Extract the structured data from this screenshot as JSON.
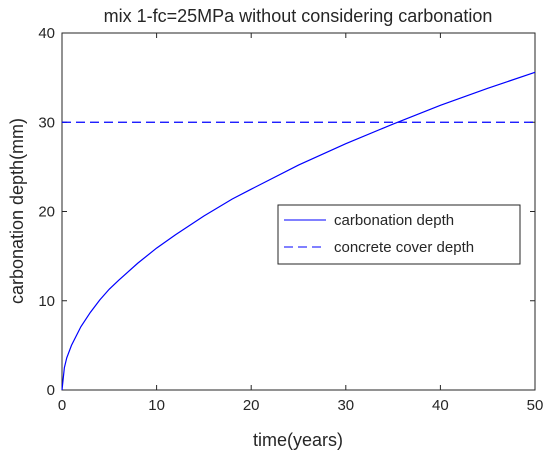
{
  "chart_data": {
    "type": "line",
    "title": "mix 1-fc=25MPa without considering carbonation",
    "xlabel": "time(years)",
    "ylabel": "carbonation depth(mm)",
    "xlim": [
      0,
      50
    ],
    "ylim": [
      0,
      40
    ],
    "xticks": [
      0,
      10,
      20,
      30,
      40,
      50
    ],
    "yticks": [
      0,
      10,
      20,
      30,
      40
    ],
    "grid": false,
    "legend_position": "right-middle",
    "series": [
      {
        "name": "carbonation depth",
        "style": "solid",
        "color": "#0000ff",
        "x": [
          0,
          0.25,
          0.5,
          1,
          2,
          3,
          4,
          5,
          6,
          8,
          10,
          12,
          15,
          18,
          20,
          25,
          30,
          35,
          40,
          45,
          50
        ],
        "y": [
          0,
          2.5,
          3.6,
          5.0,
          7.1,
          8.7,
          10.1,
          11.3,
          12.3,
          14.2,
          15.9,
          17.4,
          19.5,
          21.4,
          22.5,
          25.2,
          27.6,
          29.8,
          31.9,
          33.8,
          35.6
        ]
      },
      {
        "name": "concrete cover depth",
        "style": "dashed",
        "color": "#0000ff",
        "x": [
          0,
          50
        ],
        "y": [
          30,
          30
        ]
      }
    ]
  }
}
